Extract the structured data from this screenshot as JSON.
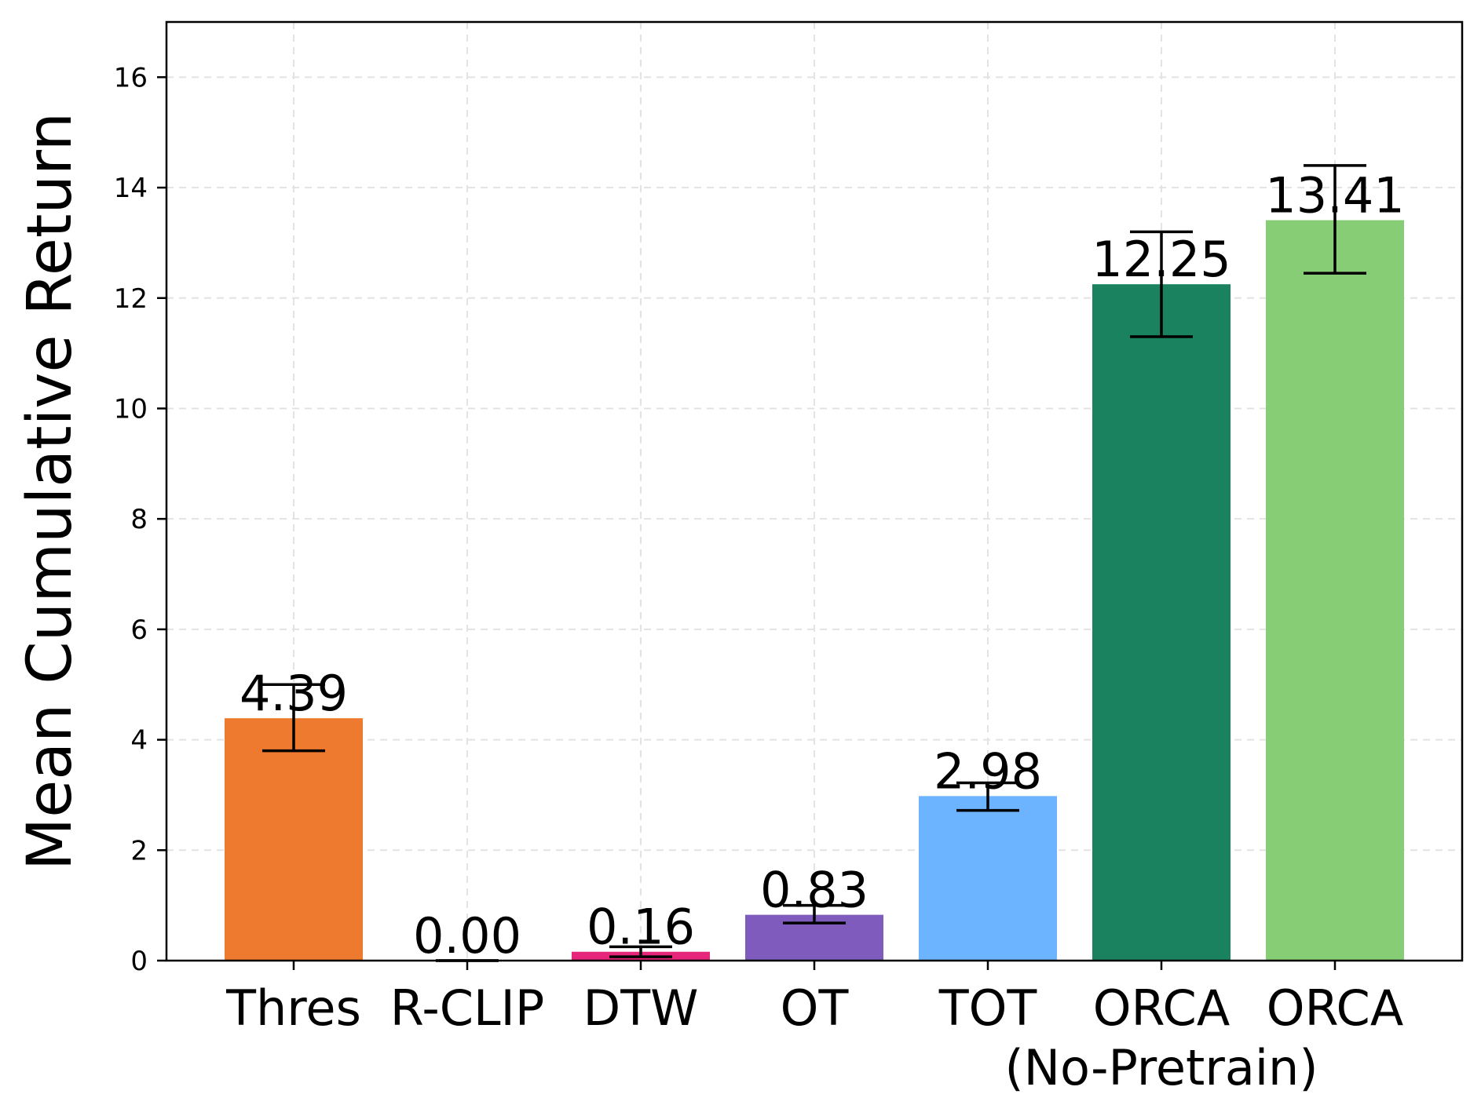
{
  "chart_data": {
    "type": "bar",
    "categories": [
      "Thres",
      "R-CLIP",
      "DTW",
      "OT",
      "TOT",
      "ORCA\n(No-Pretrain)",
      "ORCA"
    ],
    "values": [
      4.39,
      0.0,
      0.16,
      0.83,
      2.98,
      12.25,
      13.41
    ],
    "value_labels": [
      "4.39",
      "0.00",
      "0.16",
      "0.83",
      "2.98",
      "12.25",
      "13.41"
    ],
    "error_low": [
      3.8,
      0.0,
      0.07,
      0.68,
      2.72,
      11.3,
      12.45
    ],
    "error_high": [
      5.0,
      0.0,
      0.25,
      1.0,
      3.22,
      13.2,
      14.4
    ],
    "colors": [
      "#ee7a30",
      "#9b59b6",
      "#e5267a",
      "#7e5bbd",
      "#6cb4ff",
      "#1b8260",
      "#86cd76"
    ],
    "title": "",
    "xlabel": "",
    "ylabel": "Mean Cumulative Return",
    "ylim": [
      0,
      17
    ],
    "yticks": [
      0,
      2,
      4,
      6,
      8,
      10,
      12,
      14,
      16
    ],
    "grid": true,
    "legend": "none"
  }
}
